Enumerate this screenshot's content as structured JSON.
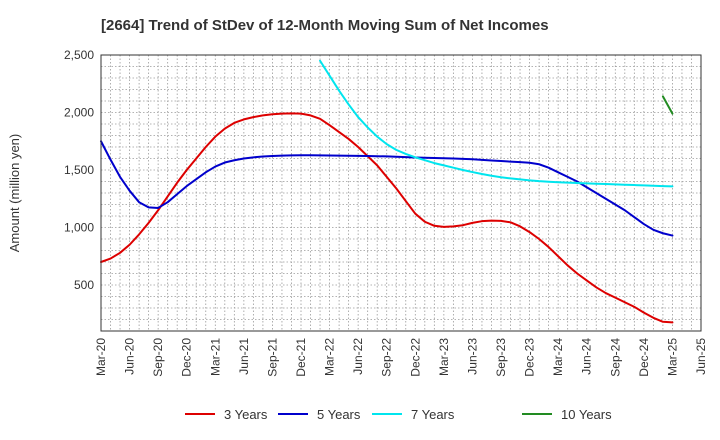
{
  "chart_data": {
    "type": "line",
    "title": "[2664]  Trend of StDev of 12-Month Moving Sum of Net Incomes",
    "ylabel": "Amount (million yen)",
    "xlabel": "",
    "ylim": [
      100,
      2500
    ],
    "yticks": [
      500,
      1000,
      1500,
      2000,
      2500
    ],
    "ytick_labels": [
      "500",
      "1,000",
      "1,500",
      "2,000",
      "2,500"
    ],
    "x_start": "Mar-20",
    "x_end": "Jun-25",
    "xtick_labels": [
      "Mar-20",
      "Jun-20",
      "Sep-20",
      "Dec-20",
      "Mar-21",
      "Jun-21",
      "Sep-21",
      "Dec-21",
      "Mar-22",
      "Jun-22",
      "Sep-22",
      "Dec-22",
      "Mar-23",
      "Jun-23",
      "Sep-23",
      "Dec-23",
      "Mar-24",
      "Jun-24",
      "Sep-24",
      "Dec-24",
      "Mar-25",
      "Jun-25"
    ],
    "grid": true,
    "legend_position": "bottom",
    "series": [
      {
        "name": "3 Years",
        "color": "#dd0000",
        "x": [
          "Mar-20",
          "Apr-20",
          "May-20",
          "Jun-20",
          "Jul-20",
          "Aug-20",
          "Sep-20",
          "Oct-20",
          "Nov-20",
          "Dec-20",
          "Jan-21",
          "Feb-21",
          "Mar-21",
          "Apr-21",
          "May-21",
          "Jun-21",
          "Jul-21",
          "Aug-21",
          "Sep-21",
          "Oct-21",
          "Nov-21",
          "Dec-21",
          "Jan-22",
          "Feb-22",
          "Mar-22",
          "Apr-22",
          "May-22",
          "Jun-22",
          "Jul-22",
          "Aug-22",
          "Sep-22",
          "Oct-22",
          "Nov-22",
          "Dec-22",
          "Jan-23",
          "Feb-23",
          "Mar-23",
          "Apr-23",
          "May-23",
          "Jun-23",
          "Jul-23",
          "Aug-23",
          "Sep-23",
          "Oct-23",
          "Nov-23",
          "Dec-23",
          "Jan-24",
          "Feb-24",
          "Mar-24",
          "Apr-24",
          "May-24",
          "Jun-24",
          "Jul-24",
          "Aug-24",
          "Sep-24",
          "Oct-24",
          "Nov-24",
          "Dec-24",
          "Jan-25",
          "Feb-25",
          "Mar-25"
        ],
        "values": [
          700,
          730,
          780,
          850,
          940,
          1040,
          1150,
          1270,
          1390,
          1500,
          1600,
          1700,
          1790,
          1860,
          1910,
          1940,
          1960,
          1975,
          1985,
          1990,
          1992,
          1990,
          1975,
          1945,
          1890,
          1830,
          1770,
          1700,
          1620,
          1540,
          1440,
          1340,
          1230,
          1120,
          1050,
          1015,
          1005,
          1010,
          1020,
          1040,
          1055,
          1060,
          1058,
          1045,
          1010,
          960,
          900,
          830,
          750,
          670,
          600,
          540,
          480,
          430,
          390,
          350,
          310,
          260,
          215,
          180,
          175
        ]
      },
      {
        "name": "5 Years",
        "color": "#0000cc",
        "x": [
          "Mar-20",
          "Apr-20",
          "May-20",
          "Jun-20",
          "Jul-20",
          "Aug-20",
          "Sep-20",
          "Oct-20",
          "Nov-20",
          "Dec-20",
          "Jan-21",
          "Feb-21",
          "Mar-21",
          "Apr-21",
          "May-21",
          "Jun-21",
          "Jul-21",
          "Aug-21",
          "Sep-21",
          "Oct-21",
          "Nov-21",
          "Dec-21",
          "Jan-22",
          "Feb-22",
          "Mar-22",
          "Apr-22",
          "May-22",
          "Jun-22",
          "Jul-22",
          "Aug-22",
          "Sep-22",
          "Oct-22",
          "Nov-22",
          "Dec-22",
          "Jan-23",
          "Feb-23",
          "Mar-23",
          "Apr-23",
          "May-23",
          "Jun-23",
          "Jul-23",
          "Aug-23",
          "Sep-23",
          "Oct-23",
          "Nov-23",
          "Dec-23",
          "Jan-24",
          "Feb-24",
          "Mar-24",
          "Apr-24",
          "May-24",
          "Jun-24",
          "Jul-24",
          "Aug-24",
          "Sep-24",
          "Oct-24",
          "Nov-24",
          "Dec-24",
          "Jan-25",
          "Feb-25",
          "Mar-25"
        ],
        "values": [
          1750,
          1590,
          1440,
          1320,
          1220,
          1175,
          1170,
          1220,
          1290,
          1360,
          1420,
          1480,
          1530,
          1565,
          1585,
          1600,
          1610,
          1617,
          1622,
          1625,
          1627,
          1628,
          1628,
          1627,
          1626,
          1625,
          1624,
          1623,
          1622,
          1620,
          1618,
          1615,
          1612,
          1609,
          1606,
          1604,
          1602,
          1600,
          1597,
          1593,
          1588,
          1583,
          1578,
          1573,
          1568,
          1563,
          1550,
          1520,
          1480,
          1440,
          1400,
          1350,
          1300,
          1250,
          1200,
          1150,
          1090,
          1030,
          980,
          950,
          930
        ]
      },
      {
        "name": "7 Years",
        "color": "#00e5ee",
        "x": [
          "Feb-22",
          "Mar-22",
          "Apr-22",
          "May-22",
          "Jun-22",
          "Jul-22",
          "Aug-22",
          "Sep-22",
          "Oct-22",
          "Nov-22",
          "Dec-22",
          "Jan-23",
          "Feb-23",
          "Mar-23",
          "Apr-23",
          "May-23",
          "Jun-23",
          "Jul-23",
          "Aug-23",
          "Sep-23",
          "Oct-23",
          "Nov-23",
          "Dec-23",
          "Jan-24",
          "Feb-24",
          "Mar-24",
          "Apr-24",
          "May-24",
          "Jun-24",
          "Jul-24",
          "Aug-24",
          "Sep-24",
          "Oct-24",
          "Nov-24",
          "Dec-24",
          "Jan-25",
          "Feb-25",
          "Mar-25"
        ],
        "values": [
          2450,
          2320,
          2190,
          2070,
          1960,
          1870,
          1790,
          1725,
          1675,
          1640,
          1610,
          1585,
          1560,
          1540,
          1520,
          1500,
          1482,
          1465,
          1450,
          1437,
          1427,
          1418,
          1410,
          1403,
          1398,
          1394,
          1390,
          1387,
          1384,
          1381,
          1378,
          1375,
          1372,
          1369,
          1366,
          1363,
          1360,
          1358
        ]
      },
      {
        "name": "10 Years",
        "color": "#228b22",
        "x": [
          "Feb-25",
          "Mar-25"
        ],
        "values": [
          2140,
          1990
        ]
      }
    ]
  }
}
